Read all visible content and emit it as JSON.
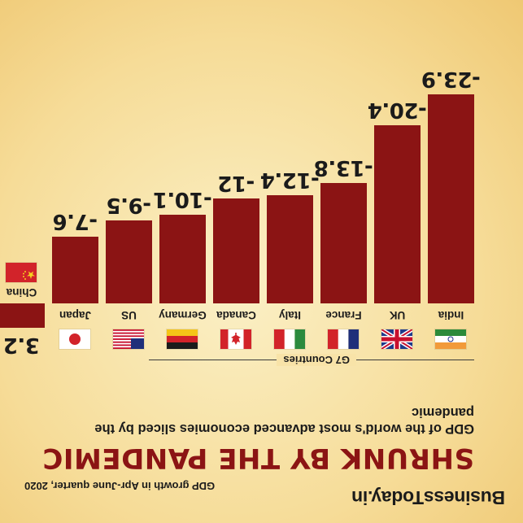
{
  "brand": "BusinessToday.in",
  "headline": "SHRUNK BY THE PANDEMIC",
  "subtitle": "GDP of the world's most advanced economies sliced by the pandemic",
  "source_note": "GDP growth in Apr-June quarter, 2020",
  "g7_label": "G7 Countries",
  "colors": {
    "bar": "#8b1414",
    "background": "#f6dc98"
  },
  "chart_data": {
    "type": "bar",
    "title": "SHRUNK BY THE PANDEMIC",
    "subtitle": "GDP of the world's most advanced economies sliced by the pandemic",
    "ylabel": "GDP growth in Apr-June quarter, 2020",
    "categories": [
      "India",
      "UK",
      "France",
      "Italy",
      "Canada",
      "Germany",
      "US",
      "Japan",
      "China"
    ],
    "values": [
      -23.9,
      -20.4,
      -13.8,
      -12.4,
      -12,
      -10.1,
      -9.5,
      -7.6,
      3.2
    ],
    "labels": [
      "-23.9",
      "-20.4",
      "-13.8",
      "-12.4",
      "-12",
      "-10.1",
      "-9.5",
      "-7.6",
      "3.2"
    ],
    "flags": [
      "india-flag",
      "uk-flag",
      "france-flag",
      "italy-flag",
      "canada-flag",
      "germany-flag",
      "us-flag",
      "japan-flag",
      "china-flag"
    ],
    "ylim": [
      -25,
      4
    ]
  }
}
